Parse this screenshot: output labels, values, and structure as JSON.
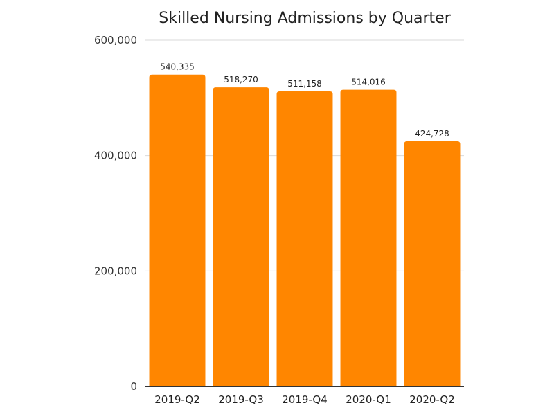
{
  "chart_data": {
    "type": "bar",
    "title": "Skilled Nursing Admissions by Quarter",
    "xlabel": "",
    "ylabel": "",
    "categories": [
      "2019-Q2",
      "2019-Q3",
      "2019-Q4",
      "2020-Q1",
      "2020-Q2"
    ],
    "values": [
      540335,
      518270,
      511158,
      514016,
      424728
    ],
    "data_labels": [
      "540,335",
      "518,270",
      "511,158",
      "514,016",
      "424,728"
    ],
    "ylim": [
      0,
      600000
    ],
    "yticks": [
      0,
      200000,
      400000,
      600000
    ],
    "ytick_labels": [
      "0",
      "200,000",
      "400,000",
      "600,000"
    ],
    "grid": true,
    "legend": "none",
    "bar_color": "#ff8600"
  }
}
